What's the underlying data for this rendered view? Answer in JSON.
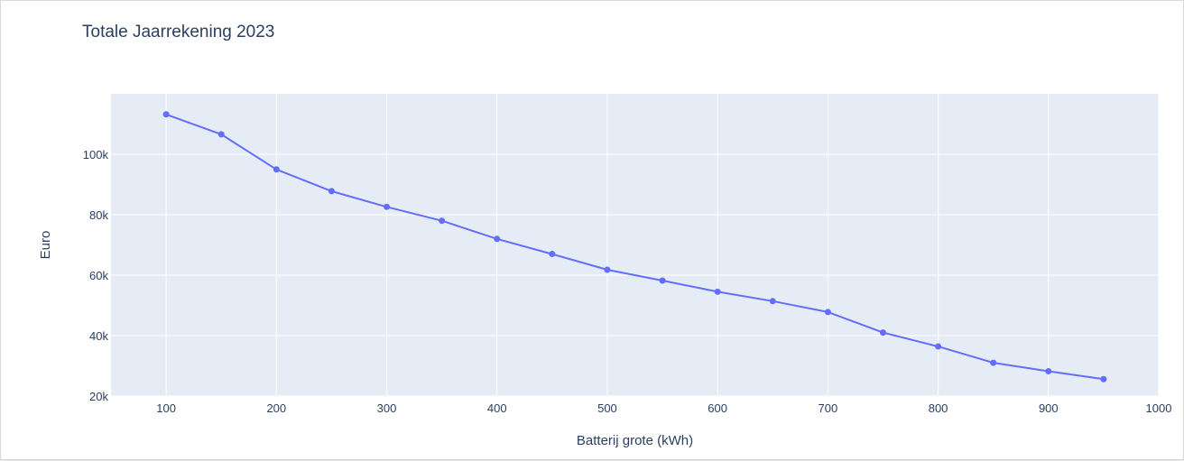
{
  "chart_data": {
    "type": "line",
    "title": "Totale Jaarrekening 2023",
    "xlabel": "Batterij grote (kWh)",
    "ylabel": "Euro",
    "xlim": [
      50,
      1000
    ],
    "ylim": [
      20000,
      120000
    ],
    "x_ticks": [
      100,
      200,
      300,
      400,
      500,
      600,
      700,
      800,
      900,
      1000
    ],
    "x_tick_labels": [
      "100",
      "200",
      "300",
      "400",
      "500",
      "600",
      "700",
      "800",
      "900",
      "1000"
    ],
    "y_ticks": [
      20000,
      40000,
      60000,
      80000,
      100000
    ],
    "y_tick_labels": [
      "20k",
      "40k",
      "60k",
      "80k",
      "100k"
    ],
    "grid": true,
    "series": [
      {
        "color": "#636efa",
        "x": [
          100,
          150,
          200,
          250,
          300,
          350,
          400,
          450,
          500,
          550,
          600,
          650,
          700,
          750,
          800,
          850,
          900,
          950
        ],
        "y": [
          113200,
          106600,
          95000,
          87800,
          82600,
          78000,
          72000,
          67000,
          61800,
          58200,
          54500,
          51400,
          47800,
          41000,
          36400,
          31000,
          28200,
          25600
        ]
      }
    ],
    "colors": {
      "plot_bg": "#e5ecf6",
      "grid": "#ffffff",
      "text": "#2a3f5f"
    }
  }
}
